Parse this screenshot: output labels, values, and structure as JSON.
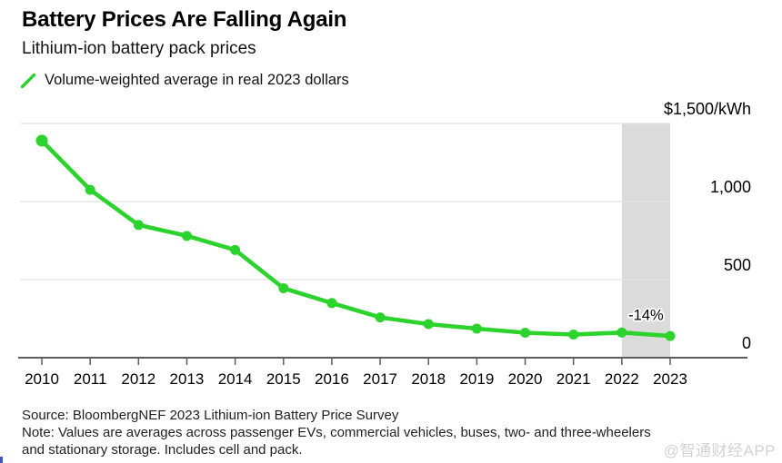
{
  "header": {
    "title": "Battery Prices Are Falling Again",
    "subtitle": "Lithium-ion battery pack prices",
    "legend": {
      "label": "Volume-weighted average in real 2023 dollars",
      "swatch_color": "#2dd32d"
    }
  },
  "chart_data": {
    "type": "line",
    "title": "Battery Prices Are Falling Again",
    "subtitle": "Lithium-ion battery pack prices",
    "categories": [
      "2010",
      "2011",
      "2012",
      "2013",
      "2014",
      "2015",
      "2016",
      "2017",
      "2018",
      "2019",
      "2020",
      "2021",
      "2022",
      "2023"
    ],
    "series": [
      {
        "name": "Volume-weighted average in real 2023 dollars",
        "color": "#2dd32d",
        "values": [
          1390,
          1075,
          850,
          780,
          690,
          445,
          350,
          258,
          215,
          186,
          160,
          148,
          161,
          139
        ]
      }
    ],
    "unit": "$/kWh",
    "ylim": [
      0,
      1500
    ],
    "grid": "horizontal",
    "legend_position": "top-left",
    "yticks": [
      {
        "value": 1500,
        "label": "$1,500/kWh"
      },
      {
        "value": 1000,
        "label": "1,000"
      },
      {
        "value": 500,
        "label": "500"
      },
      {
        "value": 0,
        "label": "0"
      }
    ],
    "highlight_band": {
      "from": "2022",
      "to": "2023",
      "color": "#dbdbdb"
    },
    "annotation": {
      "text": "-14%",
      "at_category": "2022"
    }
  },
  "footer": {
    "source": "Source: BloombergNEF 2023 Lithium-ion Battery Price Survey",
    "note_lines": [
      "Note: Values are averages across passenger EVs, commercial vehicles, buses, two- and three-wheelers",
      "and stationary storage. Includes cell and pack."
    ]
  },
  "watermark": "@智通财经APP"
}
